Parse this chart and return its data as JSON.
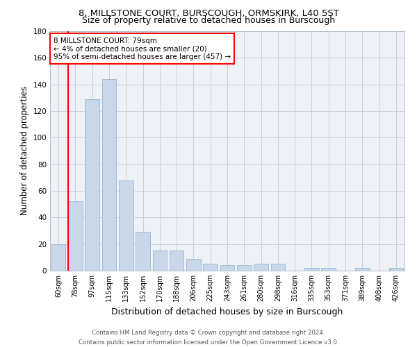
{
  "title": "8, MILLSTONE COURT, BURSCOUGH, ORMSKIRK, L40 5ST",
  "subtitle": "Size of property relative to detached houses in Burscough",
  "xlabel": "Distribution of detached houses by size in Burscough",
  "ylabel": "Number of detached properties",
  "bar_color": "#c8d8ea",
  "bar_edge_color": "#9ab4cc",
  "categories": [
    "60sqm",
    "78sqm",
    "97sqm",
    "115sqm",
    "133sqm",
    "152sqm",
    "170sqm",
    "188sqm",
    "206sqm",
    "225sqm",
    "243sqm",
    "261sqm",
    "280sqm",
    "298sqm",
    "316sqm",
    "335sqm",
    "353sqm",
    "371sqm",
    "389sqm",
    "408sqm",
    "426sqm"
  ],
  "values": [
    20,
    52,
    129,
    144,
    68,
    29,
    15,
    15,
    9,
    5,
    4,
    4,
    5,
    5,
    0,
    2,
    2,
    0,
    2,
    0,
    2
  ],
  "ylim": [
    0,
    180
  ],
  "yticks": [
    0,
    20,
    40,
    60,
    80,
    100,
    120,
    140,
    160,
    180
  ],
  "marker_label": "8 MILLSTONE COURT: 79sqm",
  "annotation_line1": "← 4% of detached houses are smaller (20)",
  "annotation_line2": "95% of semi-detached houses are larger (457) →",
  "vline_bar_index": 1,
  "footer1": "Contains HM Land Registry data © Crown copyright and database right 2024.",
  "footer2": "Contains public sector information licensed under the Open Government Licence v3.0.",
  "background_color": "#eef2f7",
  "grid_color": "#c8d0dc",
  "title_fontsize": 9.5,
  "subtitle_fontsize": 9,
  "tick_fontsize": 7,
  "ylabel_fontsize": 8.5,
  "xlabel_fontsize": 9,
  "footer_fontsize": 6.2,
  "annot_fontsize": 7.5
}
